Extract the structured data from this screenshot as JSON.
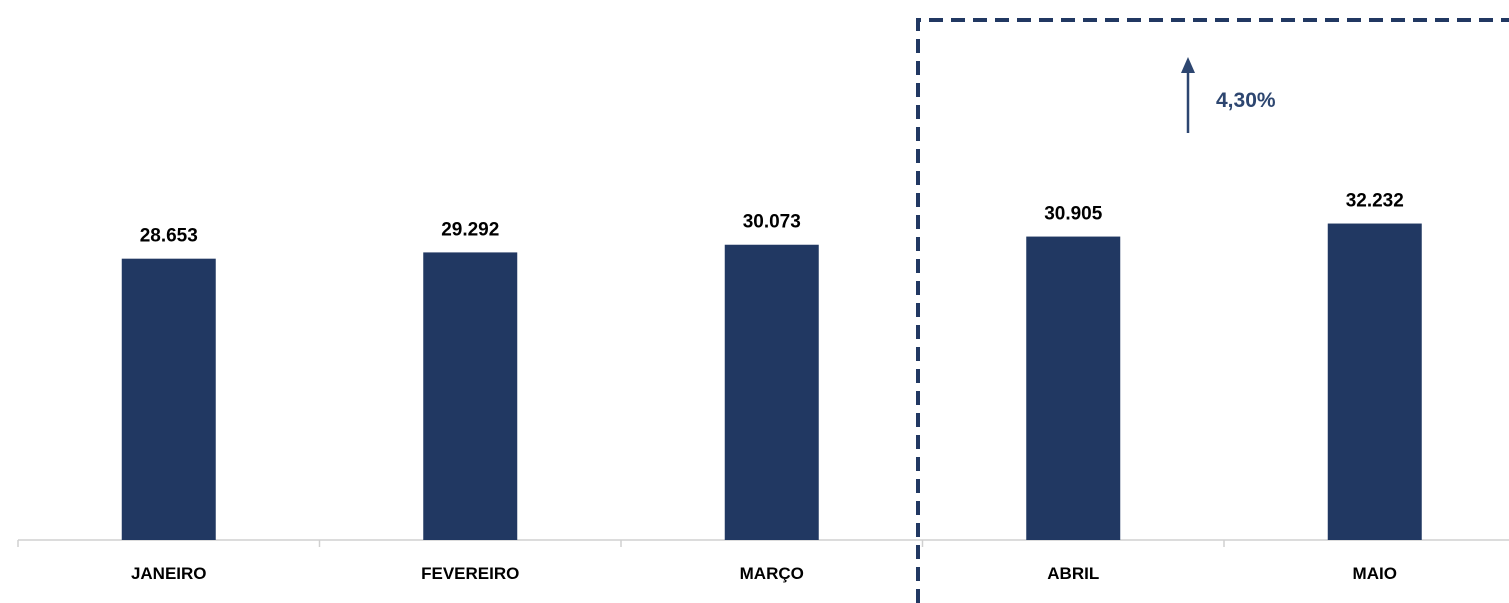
{
  "chart_data": {
    "type": "bar",
    "categories": [
      "JANEIRO",
      "FEVEREIRO",
      "MARÇO",
      "ABRIL",
      "MAIO"
    ],
    "values": [
      28653,
      29292,
      30073,
      30905,
      32232
    ],
    "value_labels": [
      "28.653",
      "29.292",
      "30.073",
      "30.905",
      "32.232"
    ],
    "title": "",
    "xlabel": "",
    "ylabel": "",
    "ylim": [
      0,
      55000
    ],
    "grid": false,
    "legend": "none",
    "highlight": {
      "categories": [
        "ABRIL",
        "MAIO"
      ],
      "style": "dashed-box",
      "annotation": "4,30%",
      "annotation_icon": "up-arrow-icon"
    }
  },
  "colors": {
    "bar": "#213862",
    "annotation": "#2d4670",
    "axis": "#d0d0d0",
    "label": "#000000"
  }
}
